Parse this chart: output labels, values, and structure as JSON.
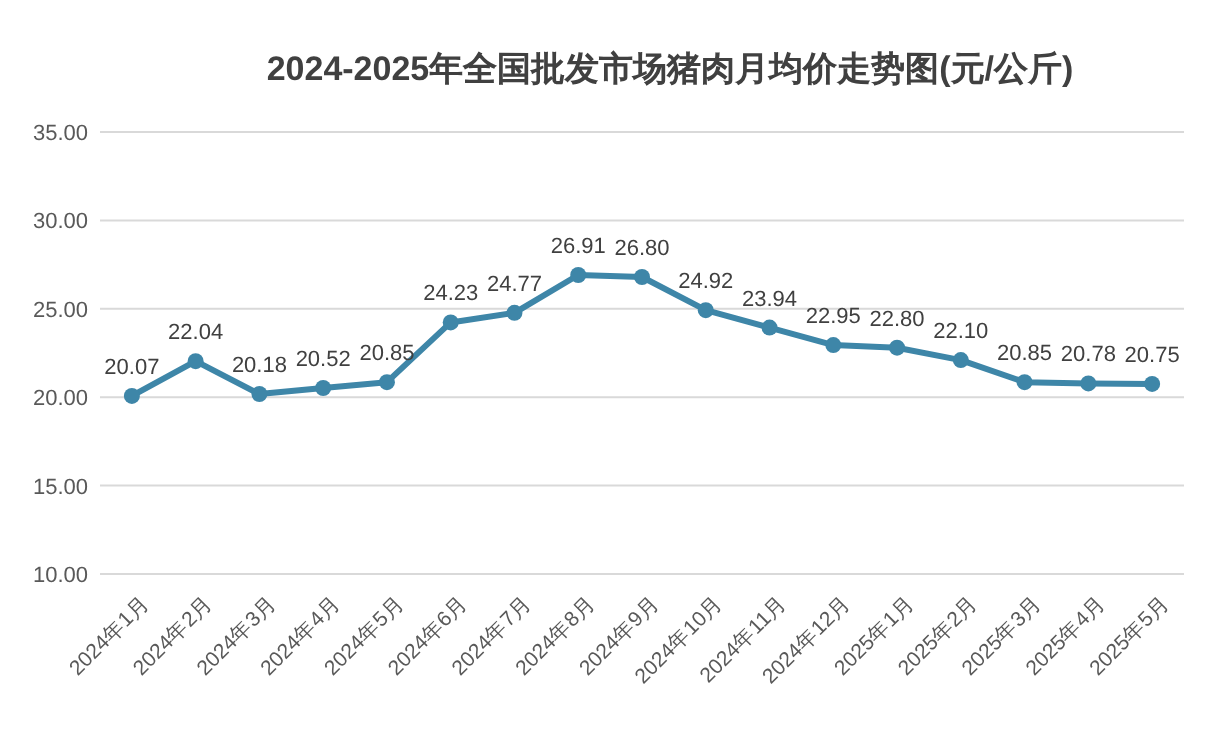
{
  "chart_data": {
    "type": "line",
    "title": "2024-2025年全国批发市场猪肉月均价走势图(元/公斤)",
    "categories": [
      "2024年1月",
      "2024年2月",
      "2024年3月",
      "2024年4月",
      "2024年5月",
      "2024年6月",
      "2024年7月",
      "2024年8月",
      "2024年9月",
      "2024年10月",
      "2024年11月",
      "2024年12月",
      "2025年1月",
      "2025年2月",
      "2025年3月",
      "2025年4月",
      "2025年5月"
    ],
    "series": [
      {
        "color": "#3e86a8",
        "values": [
          20.07,
          22.04,
          20.18,
          20.52,
          20.85,
          24.23,
          24.77,
          26.91,
          26.8,
          24.92,
          23.94,
          22.95,
          22.8,
          22.1,
          20.85,
          20.78,
          20.75
        ],
        "value_labels": [
          "20.07",
          "22.04",
          "20.18",
          "20.52",
          "20.85",
          "24.23",
          "24.77",
          "26.91",
          "26.80",
          "24.92",
          "23.94",
          "22.95",
          "22.80",
          "22.10",
          "20.85",
          "20.78",
          "20.75"
        ]
      }
    ],
    "ylim": [
      10,
      35
    ],
    "yticks": [
      {
        "value": 10,
        "label": "10.00"
      },
      {
        "value": 15,
        "label": "15.00"
      },
      {
        "value": 20,
        "label": "20.00"
      },
      {
        "value": 25,
        "label": "25.00"
      },
      {
        "value": 30,
        "label": "30.00"
      },
      {
        "value": 35,
        "label": "35.00"
      }
    ],
    "grid": "y",
    "marker": "circle",
    "line_style": "solid"
  }
}
